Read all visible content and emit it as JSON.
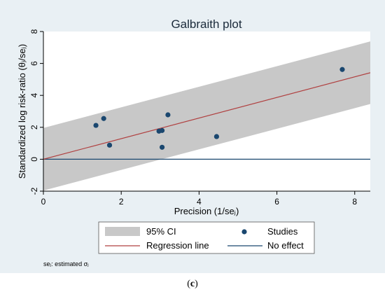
{
  "chart_data": {
    "type": "scatter",
    "title": "Galbraith plot",
    "xlabel": "Precision (1/seⱼ)",
    "ylabel": "Standardized log risk-ratio (θⱼ/seⱼ)",
    "xlim": [
      0,
      8.4
    ],
    "ylim": [
      -2,
      8
    ],
    "xticks": [
      "0",
      "2",
      "4",
      "6",
      "8"
    ],
    "yticks": [
      "-2",
      "0",
      "2",
      "4",
      "6",
      "8"
    ],
    "grid": false,
    "points": [
      {
        "x": 1.35,
        "y": 2.12
      },
      {
        "x": 1.55,
        "y": 2.55
      },
      {
        "x": 1.7,
        "y": 0.88
      },
      {
        "x": 2.97,
        "y": 1.76
      },
      {
        "x": 3.05,
        "y": 1.8
      },
      {
        "x": 3.05,
        "y": 0.75
      },
      {
        "x": 3.2,
        "y": 2.78
      },
      {
        "x": 4.45,
        "y": 1.42
      },
      {
        "x": 7.68,
        "y": 5.62
      }
    ],
    "regression": {
      "intercept": 0.0,
      "slope": 0.645
    },
    "ci_half_width": 1.96,
    "no_effect": 0,
    "legend": {
      "placement": "bottom",
      "items": [
        {
          "label": "95% CI",
          "kind": "band",
          "color": "#c8c8c8"
        },
        {
          "label": "Studies",
          "kind": "marker",
          "color": "#1a476f"
        },
        {
          "label": "Regression line",
          "kind": "line",
          "color": "#b04040"
        },
        {
          "label": "No effect",
          "kind": "line",
          "color": "#1a476f"
        }
      ]
    },
    "note": "seⱼ: estimated σⱼ",
    "colors": {
      "band": "#c8c8c8",
      "regression": "#b04040",
      "noeffect": "#1a476f",
      "marker": "#1a476f",
      "background": "#e9f0f4"
    }
  },
  "caption_label": "c"
}
